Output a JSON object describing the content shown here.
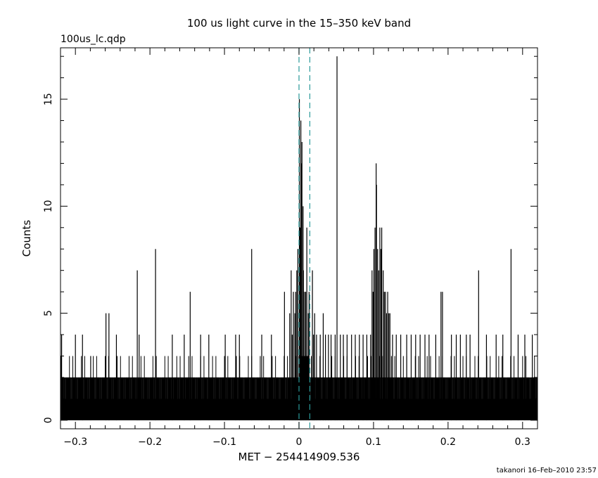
{
  "chart_data": {
    "type": "line",
    "title": "100 us light curve in the 15–350 keV band",
    "file_label": "100us_lc.qdp",
    "xlabel": "MET − 254414909.536",
    "ylabel": "Counts",
    "footer": "takanori 16–Feb–2010 23:57",
    "xlim": [
      -0.32,
      0.32
    ],
    "ylim": [
      -0.4,
      17.4
    ],
    "x_ticks": [
      {
        "value": -0.3,
        "label": "−0.3"
      },
      {
        "value": -0.2,
        "label": "−0.2"
      },
      {
        "value": -0.1,
        "label": "−0.1"
      },
      {
        "value": 0,
        "label": "0"
      },
      {
        "value": 0.1,
        "label": "0.1"
      },
      {
        "value": 0.2,
        "label": "0.2"
      },
      {
        "value": 0.3,
        "label": "0.3"
      }
    ],
    "y_ticks": [
      {
        "value": 0,
        "label": "0"
      },
      {
        "value": 5,
        "label": "5"
      },
      {
        "value": 10,
        "label": "10"
      },
      {
        "value": 15,
        "label": "15"
      }
    ],
    "bin_width": 0.0001,
    "background_counts": [
      0,
      1,
      1,
      0,
      2,
      1,
      0,
      1,
      0,
      1,
      2,
      0,
      1,
      1,
      0,
      3,
      1,
      0,
      1,
      2
    ],
    "markers": [
      {
        "x": 0.0,
        "style": "dashed",
        "color": "#2a9a9a"
      },
      {
        "x": 0.0145,
        "style": "dashed",
        "color": "#2a9a9a"
      }
    ],
    "spikes": [
      [
        -0.3,
        4
      ],
      [
        -0.3185,
        4
      ],
      [
        -0.2905,
        4
      ],
      [
        -0.2795,
        3
      ],
      [
        -0.259,
        5
      ],
      [
        -0.255,
        5
      ],
      [
        -0.245,
        4
      ],
      [
        -0.217,
        7
      ],
      [
        -0.2145,
        4
      ],
      [
        -0.1925,
        8
      ],
      [
        -0.17,
        4
      ],
      [
        -0.154,
        4
      ],
      [
        -0.146,
        6
      ],
      [
        -0.132,
        4
      ],
      [
        -0.121,
        4
      ],
      [
        -0.099,
        4
      ],
      [
        -0.085,
        4
      ],
      [
        -0.08,
        4
      ],
      [
        -0.0635,
        8
      ],
      [
        -0.05,
        4
      ],
      [
        -0.037,
        4
      ],
      [
        -0.0195,
        6
      ],
      [
        -0.0125,
        5
      ],
      [
        -0.0105,
        7
      ],
      [
        -0.009,
        4
      ],
      [
        -0.0075,
        6
      ],
      [
        -0.0055,
        5
      ],
      [
        -0.0045,
        6
      ],
      [
        -0.003,
        7
      ],
      [
        -0.0015,
        8
      ],
      [
        0.0005,
        15
      ],
      [
        0.0015,
        9
      ],
      [
        0.0025,
        14
      ],
      [
        0.003,
        12
      ],
      [
        0.004,
        13
      ],
      [
        0.0055,
        10
      ],
      [
        0.006,
        7
      ],
      [
        0.0075,
        6
      ],
      [
        0.009,
        6
      ],
      [
        0.0105,
        9
      ],
      [
        0.0125,
        5
      ],
      [
        0.0135,
        6
      ],
      [
        0.018,
        7
      ],
      [
        0.0195,
        4
      ],
      [
        0.021,
        5
      ],
      [
        0.0235,
        4
      ],
      [
        0.0285,
        4
      ],
      [
        0.0325,
        5
      ],
      [
        0.0355,
        4
      ],
      [
        0.0395,
        4
      ],
      [
        0.043,
        4
      ],
      [
        0.0485,
        4
      ],
      [
        0.051,
        17
      ],
      [
        0.0555,
        4
      ],
      [
        0.0595,
        4
      ],
      [
        0.0645,
        4
      ],
      [
        0.0705,
        4
      ],
      [
        0.0755,
        4
      ],
      [
        0.081,
        4
      ],
      [
        0.086,
        4
      ],
      [
        0.091,
        4
      ],
      [
        0.096,
        4
      ],
      [
        0.098,
        7
      ],
      [
        0.0995,
        6
      ],
      [
        0.1005,
        8
      ],
      [
        0.102,
        9
      ],
      [
        0.1035,
        12
      ],
      [
        0.104,
        11
      ],
      [
        0.1055,
        8
      ],
      [
        0.107,
        7
      ],
      [
        0.1085,
        9
      ],
      [
        0.11,
        8
      ],
      [
        0.111,
        9
      ],
      [
        0.113,
        7
      ],
      [
        0.1145,
        6
      ],
      [
        0.116,
        6
      ],
      [
        0.1175,
        5
      ],
      [
        0.119,
        6
      ],
      [
        0.1205,
        5
      ],
      [
        0.122,
        5
      ],
      [
        0.1255,
        4
      ],
      [
        0.1305,
        4
      ],
      [
        0.1365,
        4
      ],
      [
        0.1445,
        4
      ],
      [
        0.1505,
        4
      ],
      [
        0.1565,
        4
      ],
      [
        0.1625,
        4
      ],
      [
        0.169,
        4
      ],
      [
        0.1745,
        4
      ],
      [
        0.1835,
        4
      ],
      [
        0.1905,
        6
      ],
      [
        0.1925,
        6
      ],
      [
        0.2045,
        4
      ],
      [
        0.211,
        4
      ],
      [
        0.2165,
        4
      ],
      [
        0.2245,
        4
      ],
      [
        0.2295,
        4
      ],
      [
        0.241,
        7
      ],
      [
        0.2515,
        4
      ],
      [
        0.2645,
        4
      ],
      [
        0.2735,
        4
      ],
      [
        0.2845,
        8
      ],
      [
        0.294,
        4
      ],
      [
        0.303,
        4
      ],
      [
        0.313,
        4
      ]
    ],
    "grid": false
  }
}
